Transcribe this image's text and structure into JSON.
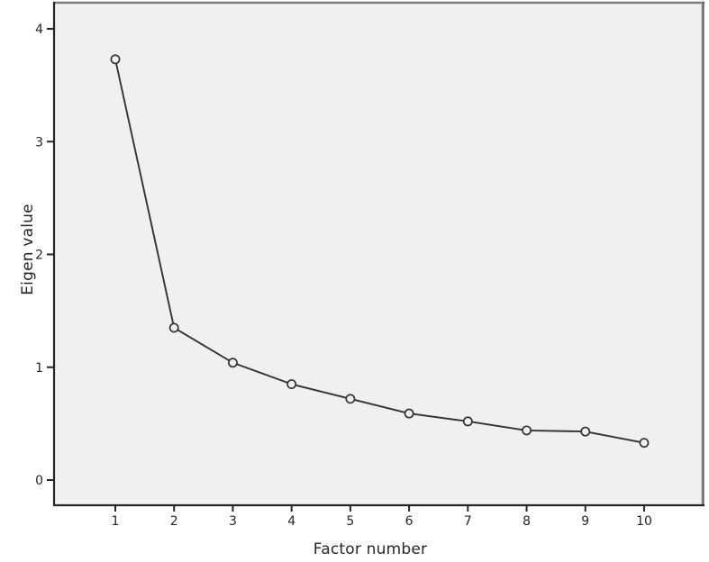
{
  "figure": {
    "background": "#ffffff",
    "plot_background": "#f0f0ee",
    "frame_dark_color": "#262626",
    "frame_top_color": "#7d7d7d",
    "frame_right_color": "#5a5a5a",
    "frame_right_light_color": "#c0c0c0",
    "line_color": "#333333",
    "marker_stroke_color": "#333333",
    "tick_label_color": "#262626"
  },
  "chart_data": {
    "type": "line",
    "title": "",
    "xlabel": "Factor number",
    "ylabel": "Eigen value",
    "x": [
      1,
      2,
      3,
      4,
      5,
      6,
      7,
      8,
      9,
      10
    ],
    "series": [
      {
        "name": "Eigenvalues",
        "values": [
          3.73,
          1.35,
          1.04,
          0.85,
          0.72,
          0.59,
          0.52,
          0.44,
          0.43,
          0.33
        ]
      }
    ],
    "x_ticks": [
      1,
      2,
      3,
      4,
      5,
      6,
      7,
      8,
      9,
      10
    ],
    "y_ticks": [
      0,
      1,
      2,
      3,
      4
    ],
    "xlim": [
      0,
      11
    ],
    "ylim": [
      -0.22,
      4.25
    ],
    "grid": false,
    "legend": null,
    "marker": "open-circle"
  }
}
